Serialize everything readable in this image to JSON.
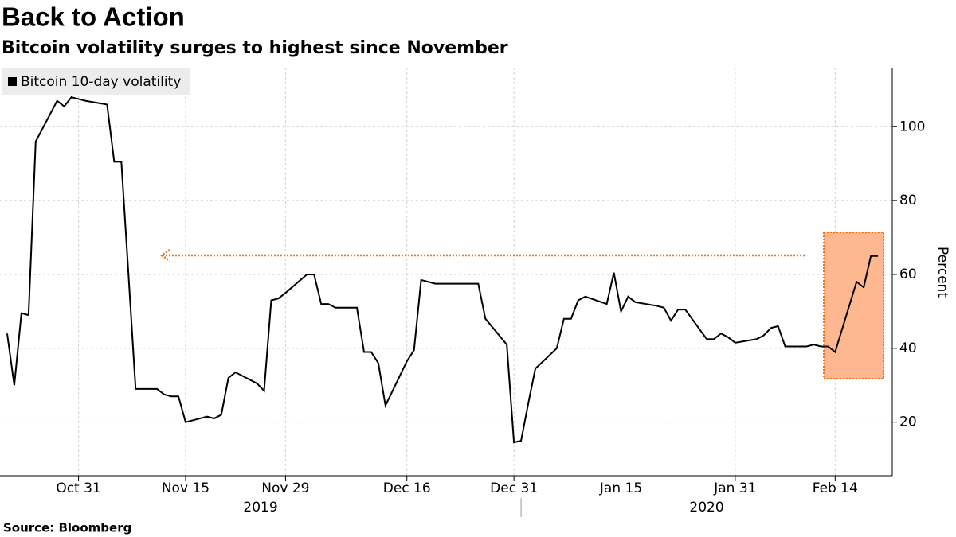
{
  "chart_data": {
    "type": "line",
    "title": "Back to Action",
    "subtitle": "Bitcoin volatility surges to highest since November",
    "y_label": "Percent",
    "source": "Source: Bloomberg",
    "years": [
      "2019",
      "2020"
    ],
    "x": [
      "2019-10-21",
      "2019-10-22",
      "2019-10-23",
      "2019-10-24",
      "2019-10-25",
      "2019-10-28",
      "2019-10-29",
      "2019-10-30",
      "2019-10-31",
      "2019-11-01",
      "2019-11-04",
      "2019-11-05",
      "2019-11-06",
      "2019-11-07",
      "2019-11-08",
      "2019-11-11",
      "2019-11-12",
      "2019-11-13",
      "2019-11-14",
      "2019-11-15",
      "2019-11-18",
      "2019-11-19",
      "2019-11-20",
      "2019-11-21",
      "2019-11-22",
      "2019-11-25",
      "2019-11-26",
      "2019-11-27",
      "2019-11-28",
      "2019-11-29",
      "2019-12-02",
      "2019-12-03",
      "2019-12-04",
      "2019-12-05",
      "2019-12-06",
      "2019-12-09",
      "2019-12-10",
      "2019-12-11",
      "2019-12-12",
      "2019-12-13",
      "2019-12-16",
      "2019-12-17",
      "2019-12-18",
      "2019-12-19",
      "2019-12-20",
      "2019-12-23",
      "2019-12-24",
      "2019-12-25",
      "2019-12-26",
      "2019-12-27",
      "2019-12-30",
      "2019-12-31",
      "2020-01-01",
      "2020-01-02",
      "2020-01-03",
      "2020-01-06",
      "2020-01-07",
      "2020-01-08",
      "2020-01-09",
      "2020-01-10",
      "2020-01-13",
      "2020-01-14",
      "2020-01-15",
      "2020-01-16",
      "2020-01-17",
      "2020-01-20",
      "2020-01-21",
      "2020-01-22",
      "2020-01-23",
      "2020-01-24",
      "2020-01-27",
      "2020-01-28",
      "2020-01-29",
      "2020-01-30",
      "2020-01-31",
      "2020-02-03",
      "2020-02-04",
      "2020-02-05",
      "2020-02-06",
      "2020-02-07",
      "2020-02-10",
      "2020-02-11",
      "2020-02-12",
      "2020-02-13",
      "2020-02-14",
      "2020-02-17",
      "2020-02-18",
      "2020-02-19",
      "2020-02-20"
    ],
    "series": [
      {
        "name": "Bitcoin 10-day volatility",
        "color": "#000000",
        "values": [
          44,
          30,
          49.5,
          49,
          96,
          107,
          105.5,
          108,
          107.5,
          107,
          106,
          90.5,
          90.5,
          60,
          29,
          29,
          27.5,
          27,
          27,
          20,
          21.5,
          21,
          22,
          32,
          33.5,
          30.5,
          28.5,
          53,
          53.5,
          55,
          60,
          60,
          52,
          52,
          51,
          51,
          39,
          39,
          36,
          24.5,
          36.5,
          39.5,
          58.5,
          58,
          57.5,
          57.5,
          57.5,
          57.5,
          57.5,
          48,
          41,
          14.5,
          15,
          25,
          34.5,
          40,
          48,
          48,
          53,
          54,
          52,
          60.5,
          50,
          54,
          52.5,
          51.5,
          51,
          47.5,
          50.5,
          50.5,
          42.5,
          42.5,
          44,
          43,
          41.5,
          42.5,
          43.5,
          45.5,
          46,
          40.5,
          40.5,
          41,
          40.5,
          40.5,
          39,
          58,
          56.5,
          65,
          65
        ]
      }
    ],
    "xlim": [
      "2019-10-20",
      "2020-02-22"
    ],
    "xticks": [
      {
        "value": "2019-10-31",
        "label": "Oct 31"
      },
      {
        "value": "2019-11-15",
        "label": "Nov 15"
      },
      {
        "value": "2019-11-29",
        "label": "Nov 29"
      },
      {
        "value": "2019-12-16",
        "label": "Dec 16"
      },
      {
        "value": "2019-12-31",
        "label": "Dec 31"
      },
      {
        "value": "2020-01-15",
        "label": "Jan 15"
      },
      {
        "value": "2020-01-31",
        "label": "Jan 31"
      },
      {
        "value": "2020-02-14",
        "label": "Feb 14"
      }
    ],
    "ylim": [
      5.5,
      116
    ],
    "yticks": [
      20,
      40,
      60,
      80,
      100
    ],
    "grid": true
  }
}
